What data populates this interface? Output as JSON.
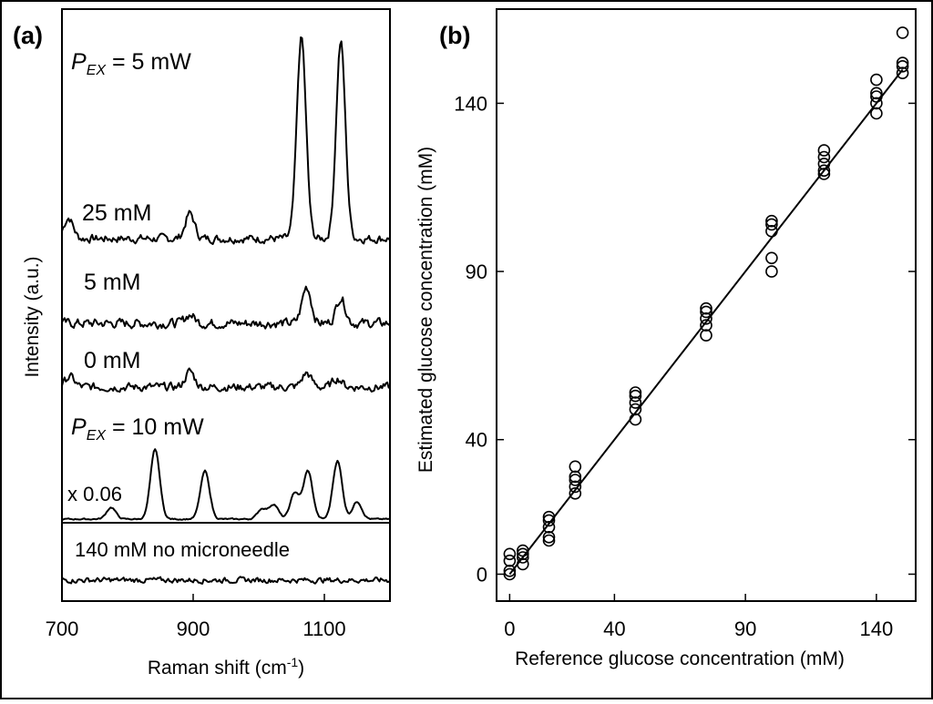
{
  "chart_data": [
    {
      "type": "line",
      "panel_label": "(a)",
      "xlabel": "Raman shift (cm",
      "xlabel_sup": "-1",
      "xlabel_end": ")",
      "ylabel": "Intensity (a.u.)",
      "xlim": [
        700,
        1200
      ],
      "x_ticks": [
        700,
        900,
        1100
      ],
      "grid": false,
      "annotations": {
        "pex5_main": "P",
        "pex5_sub": "EX",
        "pex5_rest": " = 5 mW",
        "label_25": "25 mM",
        "label_5": "5 mM",
        "label_0": "0 mM",
        "pex10_main": "P",
        "pex10_sub": "EX",
        "pex10_rest": " = 10 mW",
        "scale": "x 0.06",
        "nomicro": "140 mM no microneedle"
      },
      "series": [
        {
          "label_key": "label_25",
          "peaks": [
            [
              710,
              0.1
            ],
            [
              895,
              0.12
            ],
            [
              1065,
              0.96
            ],
            [
              1125,
              0.94
            ]
          ]
        },
        {
          "label_key": "label_5",
          "peaks": [
            [
              895,
              0.1
            ],
            [
              1073,
              0.42
            ],
            [
              1125,
              0.3
            ]
          ]
        },
        {
          "label_key": "label_0",
          "peaks": [
            [
              712,
              0.12
            ],
            [
              895,
              0.18
            ],
            [
              1073,
              0.16
            ],
            [
              1120,
              0.1
            ]
          ]
        },
        {
          "label_key": "scale",
          "peaks": [
            [
              775,
              0.08
            ],
            [
              842,
              0.48
            ],
            [
              918,
              0.33
            ],
            [
              1005,
              0.07
            ],
            [
              1023,
              0.1
            ],
            [
              1055,
              0.18
            ],
            [
              1075,
              0.33
            ],
            [
              1120,
              0.4
            ],
            [
              1150,
              0.12
            ]
          ]
        },
        {
          "label_key": "nomicro",
          "peaks": []
        }
      ]
    },
    {
      "type": "scatter",
      "panel_label": "(b)",
      "xlabel": "Reference glucose concentration (mM)",
      "ylabel": "Estimated glucose concentration (mM)",
      "xlim": [
        -5,
        155
      ],
      "ylim": [
        -8,
        168
      ],
      "x_ticks": [
        0,
        40,
        90,
        140
      ],
      "y_ticks": [
        0,
        40,
        90,
        140
      ],
      "grid": false,
      "fit_line": [
        [
          0,
          0
        ],
        [
          150,
          150
        ]
      ],
      "points": [
        [
          0,
          0
        ],
        [
          0,
          1
        ],
        [
          0,
          4
        ],
        [
          0,
          6
        ],
        [
          5,
          3
        ],
        [
          5,
          5
        ],
        [
          5,
          6
        ],
        [
          5,
          7
        ],
        [
          15,
          10
        ],
        [
          15,
          11
        ],
        [
          15,
          14
        ],
        [
          15,
          16
        ],
        [
          15,
          17
        ],
        [
          25,
          24
        ],
        [
          25,
          26
        ],
        [
          25,
          28
        ],
        [
          25,
          29
        ],
        [
          25,
          32
        ],
        [
          48,
          46
        ],
        [
          48,
          49
        ],
        [
          48,
          51
        ],
        [
          48,
          53
        ],
        [
          48,
          54
        ],
        [
          75,
          71
        ],
        [
          75,
          74
        ],
        [
          75,
          76
        ],
        [
          75,
          78
        ],
        [
          75,
          79
        ],
        [
          100,
          90
        ],
        [
          100,
          94
        ],
        [
          100,
          102
        ],
        [
          100,
          104
        ],
        [
          100,
          105
        ],
        [
          120,
          119
        ],
        [
          120,
          120
        ],
        [
          120,
          122
        ],
        [
          120,
          124
        ],
        [
          120,
          126
        ],
        [
          140,
          137
        ],
        [
          140,
          140
        ],
        [
          140,
          142
        ],
        [
          140,
          143
        ],
        [
          140,
          147
        ],
        [
          150,
          149
        ],
        [
          150,
          151
        ],
        [
          150,
          152
        ],
        [
          150,
          161
        ]
      ]
    }
  ]
}
